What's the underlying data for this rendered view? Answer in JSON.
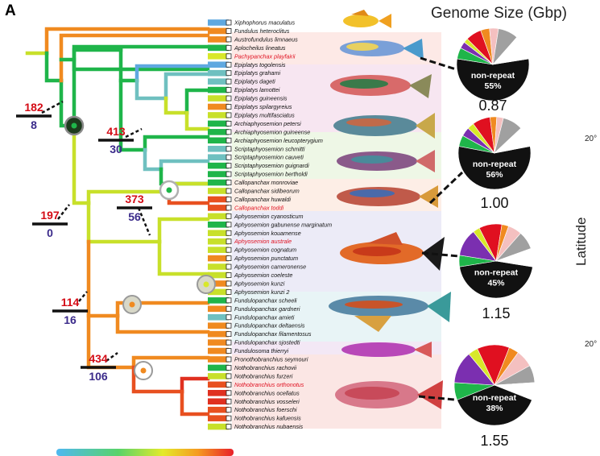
{
  "panel_letter": "A",
  "genome_title": "Genome Size (Gbp)",
  "latitude_label": "Latitude",
  "latitude_ticks": [
    "20°",
    "20°"
  ],
  "species": [
    {
      "name": "Xiphophorus maculatus",
      "color": "#5fa8e0",
      "hl": false
    },
    {
      "name": "Fundulus heteroclitus",
      "color": "#f08a20",
      "hl": false
    },
    {
      "name": "Austrofundulus limnaeus",
      "color": "#f08a20",
      "hl": false
    },
    {
      "name": "Aplocheilus lineatus",
      "color": "#1fb54a",
      "hl": false
    },
    {
      "name": "Pachypanchax playfairii",
      "color": "#d8e82a",
      "hl": true
    },
    {
      "name": "Epiplatys togolensis",
      "color": "#5fa8e0",
      "hl": false
    },
    {
      "name": "Epiplatys grahami",
      "color": "#6fc0c0",
      "hl": false
    },
    {
      "name": "Epiplatys dageti",
      "color": "#6fc0c0",
      "hl": false
    },
    {
      "name": "Epiplatys lamottei",
      "color": "#1fb54a",
      "hl": false
    },
    {
      "name": "Epiplatys guineensis",
      "color": "#c8e02a",
      "hl": false
    },
    {
      "name": "Epiplatys spilargyreius",
      "color": "#f08a20",
      "hl": false
    },
    {
      "name": "Epiplatys multifasciatus",
      "color": "#c8e02a",
      "hl": false
    },
    {
      "name": "Archiaphyosemion petersi",
      "color": "#1fb54a",
      "hl": false
    },
    {
      "name": "Archiaphyosemion guineense",
      "color": "#1fb54a",
      "hl": false
    },
    {
      "name": "Archiaphyosemion leucopterygium",
      "color": "#1fb54a",
      "hl": false
    },
    {
      "name": "Scriptaphyosemion schmitti",
      "color": "#6fc0c0",
      "hl": false
    },
    {
      "name": "Scriptaphyosemion cauveti",
      "color": "#6fc0c0",
      "hl": false
    },
    {
      "name": "Scriptaphyosemion guignardi",
      "color": "#1fb54a",
      "hl": false
    },
    {
      "name": "Scriptaphyosemion bertholdi",
      "color": "#1fb54a",
      "hl": false
    },
    {
      "name": "Callopanchax monroviae",
      "color": "#1fb54a",
      "hl": false
    },
    {
      "name": "Callopanchax sidibeorum",
      "color": "#c8e02a",
      "hl": false
    },
    {
      "name": "Callopanchax huwaldi",
      "color": "#e85020",
      "hl": false
    },
    {
      "name": "Callopanchax toddi",
      "color": "#e85020",
      "hl": true
    },
    {
      "name": "Aphyosemion cyanosticum",
      "color": "#c8e02a",
      "hl": false
    },
    {
      "name": "Aphyosemion gabunense marginatum",
      "color": "#1fb54a",
      "hl": false
    },
    {
      "name": "Aphyosemion kouamense",
      "color": "#c8e02a",
      "hl": false
    },
    {
      "name": "Aphyosemion australe",
      "color": "#c8e02a",
      "hl": true
    },
    {
      "name": "Aphyosemion cognatum",
      "color": "#c8e02a",
      "hl": false
    },
    {
      "name": "Aphyosemion punctatum",
      "color": "#f08a20",
      "hl": false
    },
    {
      "name": "Aphyosemion cameronense",
      "color": "#c8e02a",
      "hl": false
    },
    {
      "name": "Aphyosemion coeleste",
      "color": "#c8e02a",
      "hl": false
    },
    {
      "name": "Aphyosemion kunzi",
      "color": "#f08a20",
      "hl": false
    },
    {
      "name": "Aphyosemion kunzi 2",
      "color": "#c8e02a",
      "hl": false
    },
    {
      "name": "Fundulopanchax scheeli",
      "color": "#1fb54a",
      "hl": false
    },
    {
      "name": "Fundulopanchax gardneri",
      "color": "#f08a20",
      "hl": false
    },
    {
      "name": "Fundulopanchax amieti",
      "color": "#6fc0c0",
      "hl": false
    },
    {
      "name": "Fundulopanchax deltaensis",
      "color": "#f08a20",
      "hl": false
    },
    {
      "name": "Fundulopanchax filamentosus",
      "color": "#f08a20",
      "hl": false
    },
    {
      "name": "Fundulopanchax sjostedti",
      "color": "#f08a20",
      "hl": false
    },
    {
      "name": "Fundulosoma thierryi",
      "color": "#f08a20",
      "hl": false
    },
    {
      "name": "Pronothobranchius seymouri",
      "color": "#f08a20",
      "hl": false
    },
    {
      "name": "Nothobranchius rachovii",
      "color": "#1fb54a",
      "hl": false
    },
    {
      "name": "Nothobranchius furzeri",
      "color": "#c8e02a",
      "hl": false
    },
    {
      "name": "Nothobranchius orthonotus",
      "color": "#e85020",
      "hl": true
    },
    {
      "name": "Nothobranchius ocellatus",
      "color": "#e03020",
      "hl": false
    },
    {
      "name": "Nothobranchius vosseleri",
      "color": "#e03020",
      "hl": false
    },
    {
      "name": "Nothobranchius foerschi",
      "color": "#e85020",
      "hl": false
    },
    {
      "name": "Nothobranchius kafuensis",
      "color": "#e85020",
      "hl": false
    },
    {
      "name": "Nothobranchius nubaensis",
      "color": "#c8e02a",
      "hl": false
    }
  ],
  "nodes": [
    {
      "top": "182",
      "bottom": "8"
    },
    {
      "top": "413",
      "bottom": "30"
    },
    {
      "top": "373",
      "bottom": "56"
    },
    {
      "top": "197",
      "bottom": "0"
    },
    {
      "top": "114",
      "bottom": "16"
    },
    {
      "top": "434",
      "bottom": "106"
    }
  ],
  "pies": [
    {
      "label": "non-repeat",
      "percent": "55%",
      "size": "0.87",
      "nonrepeat": 0.55,
      "slices": [
        [
          "#1fb54a",
          0.05
        ],
        [
          "#7b2fb0",
          0.03
        ],
        [
          "#d8e82a",
          0.02
        ],
        [
          "#e01020",
          0.07
        ],
        [
          "#f08a20",
          0.04
        ],
        [
          "#f4c0c0",
          0.04
        ],
        [
          "#a0a0a0",
          0.09
        ],
        [
          "#ffffff",
          0.11
        ]
      ]
    },
    {
      "label": "non-repeat",
      "percent": "56%",
      "size": "1.00",
      "nonrepeat": 0.56,
      "slices": [
        [
          "#1fb54a",
          0.05
        ],
        [
          "#7b2fb0",
          0.04
        ],
        [
          "#d8e82a",
          0.03
        ],
        [
          "#e01020",
          0.08
        ],
        [
          "#f08a20",
          0.03
        ],
        [
          "#f4c0c0",
          0.03
        ],
        [
          "#a0a0a0",
          0.09
        ],
        [
          "#ffffff",
          0.09
        ]
      ]
    },
    {
      "label": "non-repeat",
      "percent": "45%",
      "size": "1.15",
      "nonrepeat": 0.45,
      "slices": [
        [
          "#1fb54a",
          0.05
        ],
        [
          "#7b2fb0",
          0.12
        ],
        [
          "#d8e82a",
          0.03
        ],
        [
          "#e01020",
          0.1
        ],
        [
          "#f08a20",
          0.03
        ],
        [
          "#f4c0c0",
          0.06
        ],
        [
          "#a0a0a0",
          0.08
        ],
        [
          "#ffffff",
          0.08
        ]
      ]
    },
    {
      "label": "non-repeat",
      "percent": "38%",
      "size": "1.55",
      "nonrepeat": 0.38,
      "slices": [
        [
          "#1fb54a",
          0.07
        ],
        [
          "#7b2fb0",
          0.13
        ],
        [
          "#d8e82a",
          0.04
        ],
        [
          "#e01020",
          0.13
        ],
        [
          "#f08a20",
          0.04
        ],
        [
          "#f4c0c0",
          0.07
        ],
        [
          "#a0a0a0",
          0.07
        ],
        [
          "#ffffff",
          0.07
        ]
      ]
    }
  ]
}
